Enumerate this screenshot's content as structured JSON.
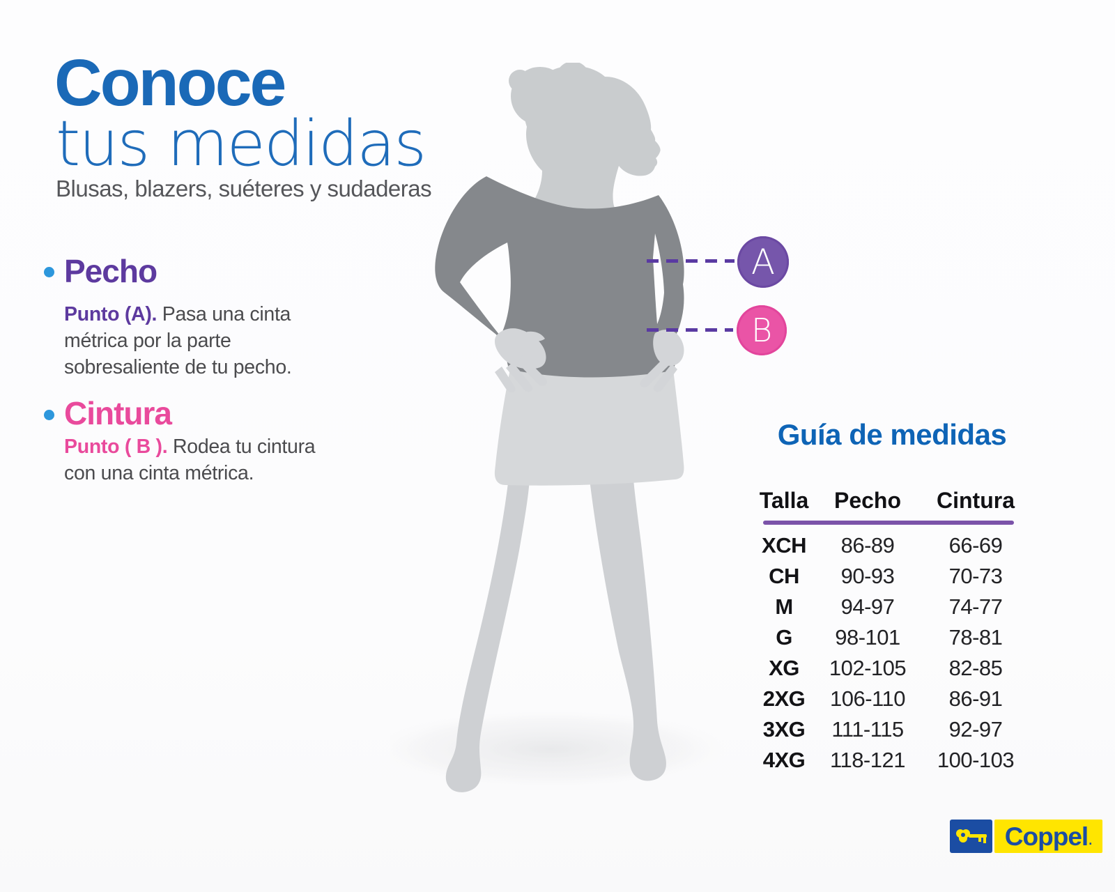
{
  "title": {
    "line1": "Conoce",
    "line2": "tus medidas",
    "subtitle": "Blusas, blazers, suéteres y sudaderas"
  },
  "pecho": {
    "heading": "Pecho",
    "point_label": "Punto (A).",
    "description": " Pasa una cinta métrica por la parte sobresaliente de tu pecho."
  },
  "cintura": {
    "heading": "Cintura",
    "point_label": "Punto  ( B ).",
    "description": " Rodea tu cintura con una cinta métrica."
  },
  "markers": {
    "a": "A",
    "b": "B"
  },
  "guide": {
    "title": "Guía de medidas",
    "columns": [
      "Talla",
      "Pecho",
      "Cintura"
    ],
    "rows": [
      {
        "talla": "XCH",
        "pecho": "86-89",
        "cintura": "66-69"
      },
      {
        "talla": "CH",
        "pecho": "90-93",
        "cintura": "70-73"
      },
      {
        "talla": "M",
        "pecho": "94-97",
        "cintura": "74-77"
      },
      {
        "talla": "G",
        "pecho": "98-101",
        "cintura": "78-81"
      },
      {
        "talla": "XG",
        "pecho": "102-105",
        "cintura": "82-85"
      },
      {
        "talla": "2XG",
        "pecho": "106-110",
        "cintura": "86-91"
      },
      {
        "talla": "3XG",
        "pecho": "111-115",
        "cintura": "92-97"
      },
      {
        "talla": "4XG",
        "pecho": "118-121",
        "cintura": "100-103"
      }
    ]
  },
  "logo": {
    "brand": "Coppel",
    "mark": "."
  },
  "colors": {
    "title_blue": "#1a69b7",
    "subtitle_gray": "#55565a",
    "purple": "#5d3a9f",
    "pink": "#e94a9c",
    "bullet_blue": "#2d97dc",
    "dash_purple": "#5a3aa2",
    "circle_a_purple": "#7656ab",
    "circle_b_pink": "#ea54a6",
    "guide_title_blue": "#0e64b6",
    "rule_purple": "#7b53a9",
    "coppel_blue": "#1b4da3",
    "coppel_yellow": "#ffe500"
  }
}
